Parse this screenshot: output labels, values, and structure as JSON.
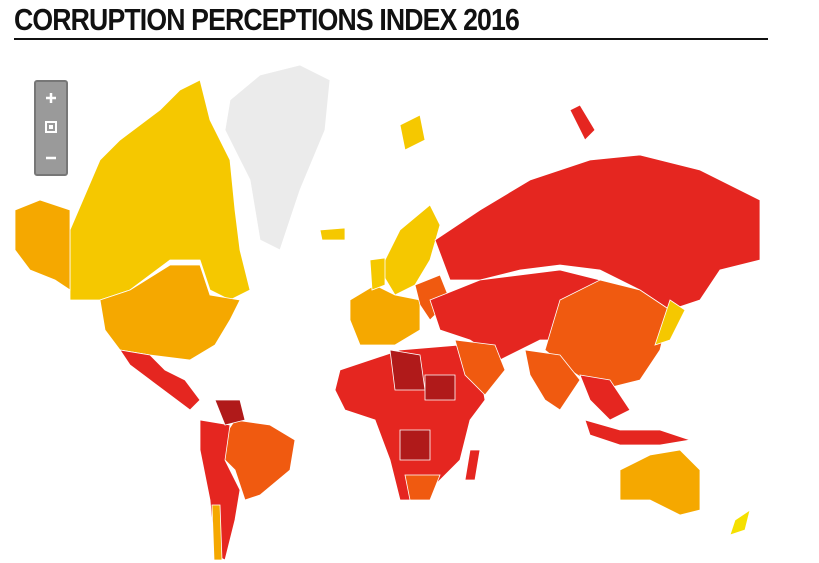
{
  "title": "CORRUPTION PERCEPTIONS INDEX 2016"
}
